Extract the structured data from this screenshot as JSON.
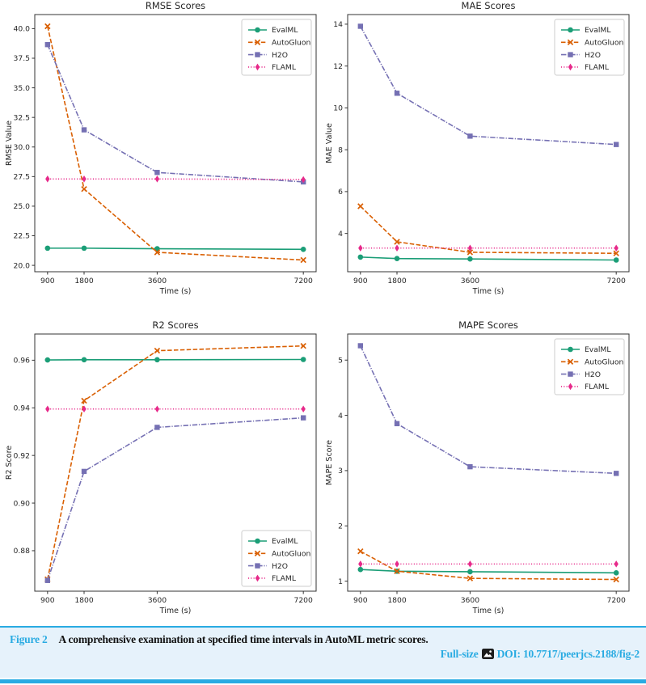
{
  "figure": {
    "caption_label": "Figure 2",
    "caption_text": "A comprehensive examination at specified time intervals in AutoML metric scores.",
    "fullsize_label": "Full-size",
    "doi_text": "DOI: 10.7717/peerjcs.2188/fig-2",
    "accent_color": "#29abe2",
    "caption_bg": "#e6f2fb",
    "caption_text_color": "#111111"
  },
  "chart_data": [
    {
      "type": "line",
      "title": "RMSE Scores",
      "xlabel": "Time (s)",
      "ylabel": "RMSE Value",
      "x": [
        900,
        1800,
        3600,
        7200
      ],
      "xtick_labels": [
        "900",
        "1800",
        "3600",
        "7200"
      ],
      "xlim": [
        585,
        7515
      ],
      "ylim": [
        19.46,
        41.19
      ],
      "yticks": [
        20.0,
        22.5,
        25.0,
        27.5,
        30.0,
        32.5,
        35.0,
        37.5,
        40.0
      ],
      "ytick_labels": [
        "20.0",
        "22.5",
        "25.0",
        "27.5",
        "30.0",
        "32.5",
        "35.0",
        "37.5",
        "40.0"
      ],
      "grid": false,
      "legend_loc": "upper-right",
      "series": [
        {
          "name": "EvalML",
          "color": "#1b9e77",
          "linestyle": "solid",
          "marker": "circle",
          "values": [
            21.45,
            21.45,
            21.4,
            21.35
          ]
        },
        {
          "name": "AutoGluon",
          "color": "#d95f02",
          "linestyle": "dashed",
          "marker": "x",
          "values": [
            40.2,
            26.45,
            21.1,
            20.45
          ]
        },
        {
          "name": "H2O",
          "color": "#7570b3",
          "linestyle": "dashdot",
          "marker": "square",
          "values": [
            38.65,
            31.45,
            27.85,
            27.05
          ]
        },
        {
          "name": "FLAML",
          "color": "#e7298a",
          "linestyle": "dotted",
          "marker": "diamond",
          "values": [
            27.3,
            27.3,
            27.3,
            27.25
          ]
        }
      ]
    },
    {
      "type": "line",
      "title": "MAE Scores",
      "xlabel": "Time (s)",
      "ylabel": "MAE Value",
      "x": [
        900,
        1800,
        3600,
        7200
      ],
      "xtick_labels": [
        "900",
        "1800",
        "3600",
        "7200"
      ],
      "xlim": [
        585,
        7515
      ],
      "ylim": [
        2.17,
        14.46
      ],
      "yticks": [
        4,
        6,
        8,
        10,
        12,
        14
      ],
      "ytick_labels": [
        "4",
        "6",
        "8",
        "10",
        "12",
        "14"
      ],
      "grid": false,
      "legend_loc": "upper-right",
      "series": [
        {
          "name": "EvalML",
          "color": "#1b9e77",
          "linestyle": "solid",
          "marker": "circle",
          "values": [
            2.87,
            2.8,
            2.78,
            2.73
          ]
        },
        {
          "name": "AutoGluon",
          "color": "#d95f02",
          "linestyle": "dashed",
          "marker": "x",
          "values": [
            5.3,
            3.6,
            3.1,
            3.05
          ]
        },
        {
          "name": "H2O",
          "color": "#7570b3",
          "linestyle": "dashdot",
          "marker": "square",
          "values": [
            13.9,
            10.7,
            8.65,
            8.25
          ]
        },
        {
          "name": "FLAML",
          "color": "#e7298a",
          "linestyle": "dotted",
          "marker": "diamond",
          "values": [
            3.3,
            3.3,
            3.3,
            3.3
          ]
        }
      ]
    },
    {
      "type": "line",
      "title": "R2 Scores",
      "xlabel": "Time (s)",
      "ylabel": "R2 Score",
      "x": [
        900,
        1800,
        3600,
        7200
      ],
      "xtick_labels": [
        "900",
        "1800",
        "3600",
        "7200"
      ],
      "xlim": [
        585,
        7515
      ],
      "ylim": [
        0.863,
        0.971
      ],
      "yticks": [
        0.88,
        0.9,
        0.92,
        0.94,
        0.96
      ],
      "ytick_labels": [
        "0.88",
        "0.90",
        "0.92",
        "0.94",
        "0.96"
      ],
      "grid": false,
      "legend_loc": "lower-right",
      "series": [
        {
          "name": "EvalML",
          "color": "#1b9e77",
          "linestyle": "solid",
          "marker": "circle",
          "values": [
            0.9601,
            0.9602,
            0.9602,
            0.9603
          ]
        },
        {
          "name": "AutoGluon",
          "color": "#d95f02",
          "linestyle": "dashed",
          "marker": "x",
          "values": [
            0.868,
            0.943,
            0.964,
            0.966
          ]
        },
        {
          "name": "H2O",
          "color": "#7570b3",
          "linestyle": "dashdot",
          "marker": "square",
          "values": [
            0.8675,
            0.9133,
            0.9318,
            0.9358
          ]
        },
        {
          "name": "FLAML",
          "color": "#e7298a",
          "linestyle": "dotted",
          "marker": "diamond",
          "values": [
            0.9395,
            0.9395,
            0.9395,
            0.9395
          ]
        }
      ]
    },
    {
      "type": "line",
      "title": "MAPE Scores",
      "xlabel": "Time (s)",
      "ylabel": "MAPE Score",
      "x": [
        900,
        1800,
        3600,
        7200
      ],
      "xtick_labels": [
        "900",
        "1800",
        "3600",
        "7200"
      ],
      "xlim": [
        585,
        7515
      ],
      "ylim": [
        0.818,
        5.472
      ],
      "yticks": [
        1,
        2,
        3,
        4,
        5
      ],
      "ytick_labels": [
        "1",
        "2",
        "3",
        "4",
        "5"
      ],
      "grid": false,
      "legend_loc": "upper-right",
      "series": [
        {
          "name": "EvalML",
          "color": "#1b9e77",
          "linestyle": "solid",
          "marker": "circle",
          "values": [
            1.21,
            1.18,
            1.17,
            1.15
          ]
        },
        {
          "name": "AutoGluon",
          "color": "#d95f02",
          "linestyle": "dashed",
          "marker": "x",
          "values": [
            1.54,
            1.18,
            1.05,
            1.03
          ]
        },
        {
          "name": "H2O",
          "color": "#7570b3",
          "linestyle": "dashdot",
          "marker": "square",
          "values": [
            5.26,
            3.85,
            3.07,
            2.95
          ]
        },
        {
          "name": "FLAML",
          "color": "#e7298a",
          "linestyle": "dotted",
          "marker": "diamond",
          "values": [
            1.31,
            1.31,
            1.31,
            1.31
          ]
        }
      ]
    }
  ]
}
